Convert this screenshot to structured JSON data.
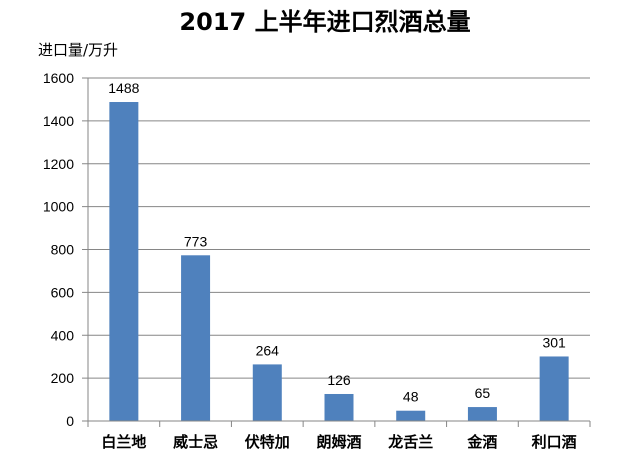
{
  "chart_data": {
    "type": "bar",
    "title": "2017 上半年进口烈酒总量",
    "ylabel": "进口量/万升",
    "xlabel": "",
    "categories": [
      "白兰地",
      "威士忌",
      "伏特加",
      "朗姆酒",
      "龙舌兰",
      "金酒",
      "利口酒"
    ],
    "values": [
      1488,
      773,
      264,
      126,
      48,
      65,
      301
    ],
    "data_labels": [
      "1488",
      "773",
      "264",
      "126",
      "48",
      "65",
      "301"
    ],
    "ylim": [
      0,
      1600
    ],
    "yticks": [
      0,
      200,
      400,
      600,
      800,
      1000,
      1200,
      1400,
      1600
    ],
    "ytick_labels": [
      "0",
      "200",
      "400",
      "600",
      "800",
      "1000",
      "1200",
      "1400",
      "1600"
    ],
    "grid": true,
    "legend": "none",
    "bar_color": "#4f81bd",
    "grid_color": "#868686"
  }
}
